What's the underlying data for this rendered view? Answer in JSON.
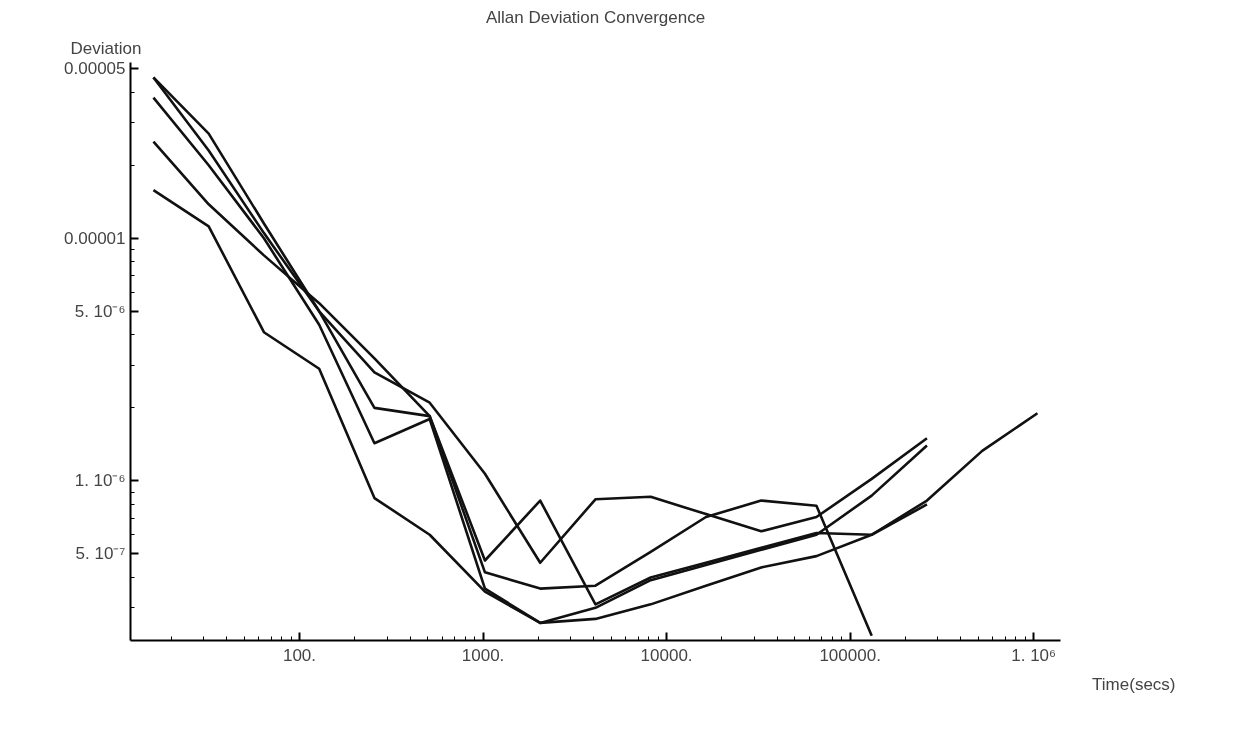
{
  "chart_data": {
    "type": "line",
    "title": "Allan Deviation Convergence",
    "xlabel": "Time(secs)",
    "ylabel": "Deviation",
    "x": [
      16,
      32,
      64,
      128,
      256,
      512,
      1024,
      2048,
      4096,
      8192,
      16384,
      32768,
      65536,
      131072,
      262144,
      524288,
      1048576
    ],
    "series": [
      {
        "color": "#111111",
        "values": [
          4.6e-05,
          2.7e-05,
          1.15e-05,
          5e-06,
          2.8e-06,
          2.1e-06,
          1.07e-06,
          4.6e-07,
          8.4e-07,
          8.6e-07,
          7.3e-07,
          6.2e-07,
          7.1e-07,
          1.02e-06,
          1.5e-06,
          null,
          null
        ]
      },
      {
        "color": "#111111",
        "values": [
          4.6e-05,
          2.3e-05,
          1.05e-05,
          5e-06,
          2e-06,
          1.85e-06,
          4.7e-07,
          8.3e-07,
          3.1e-07,
          4e-07,
          4.6e-07,
          5.3e-07,
          6.1e-07,
          6e-07,
          8.3e-07,
          1.33e-06,
          1.9e-06
        ]
      },
      {
        "color": "#111111",
        "values": [
          3.8e-05,
          2e-05,
          1e-05,
          4.4e-06,
          1.43e-06,
          1.8e-06,
          3.6e-07,
          2.6e-07,
          3e-07,
          3.9e-07,
          4.5e-07,
          5.2e-07,
          6e-07,
          8.7e-07,
          1.4e-06,
          null,
          null
        ]
      },
      {
        "color": "#111111",
        "values": [
          2.5e-05,
          1.38e-05,
          8.5e-06,
          5.4e-06,
          3.2e-06,
          1.85e-06,
          4.2e-07,
          3.6e-07,
          3.7e-07,
          5.1e-07,
          7.1e-07,
          8.3e-07,
          7.9e-07,
          2.3e-07,
          null,
          null,
          null
        ]
      },
      {
        "color": "#111111",
        "values": [
          1.58e-05,
          1.12e-05,
          4.1e-06,
          2.9e-06,
          8.5e-07,
          6e-07,
          3.5e-07,
          2.6e-07,
          2.7e-07,
          3.1e-07,
          3.7e-07,
          4.4e-07,
          4.9e-07,
          6e-07,
          8e-07,
          null,
          null
        ]
      }
    ],
    "log": "xy",
    "xlim": [
      12,
      1400000
    ],
    "ylim": [
      2.2e-07,
      5.3e-05
    ],
    "xticks": [
      {
        "value": 100,
        "label": "100."
      },
      {
        "value": 1000,
        "label": "1000."
      },
      {
        "value": 10000,
        "label": "10000."
      },
      {
        "value": 100000,
        "label": "100000."
      },
      {
        "value": 1000000,
        "label": "1. 10⁶"
      }
    ],
    "yticks": [
      {
        "value": 5e-07,
        "label": "5. 10⁻⁷"
      },
      {
        "value": 1e-06,
        "label": "1. 10⁻⁶"
      },
      {
        "value": 5e-06,
        "label": "5. 10⁻⁶"
      },
      {
        "value": 1e-05,
        "label": "0.00001"
      },
      {
        "value": 5e-05,
        "label": "0.00005"
      }
    ],
    "grid": false,
    "marker": "none",
    "line_style": "solid"
  }
}
